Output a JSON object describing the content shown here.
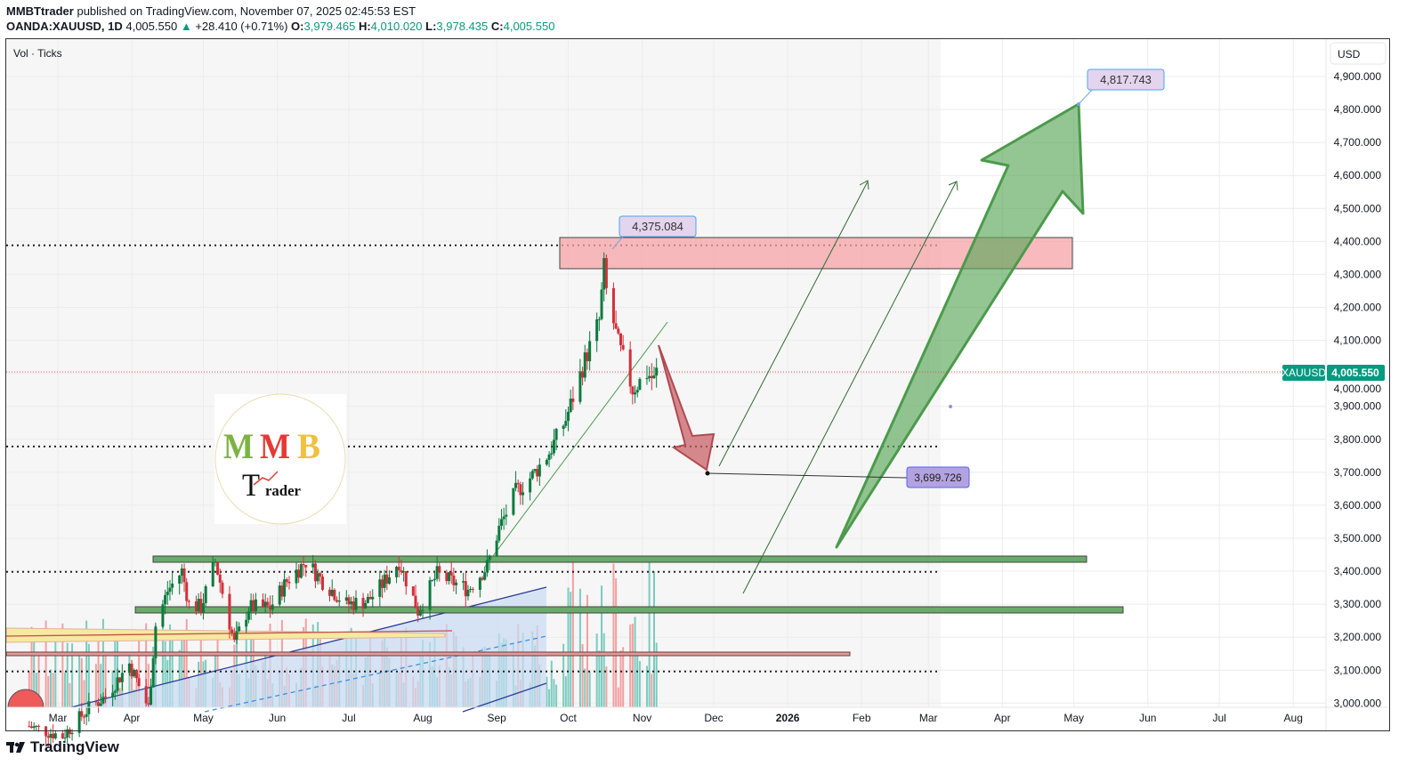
{
  "header": {
    "publisher": "MMBTtrader",
    "published_text": "published on TradingView.com, November 07, 2025 02:45:53 EST",
    "symbol": "OANDA:XAUUSD, 1D",
    "last": "4,005.550",
    "change": "+28.410 (+0.71%)",
    "open_label": "O:",
    "open": "3,979.465",
    "high_label": "H:",
    "high": "4,010.020",
    "low_label": "L:",
    "low": "3,978.435",
    "close_label": "C:",
    "close": "4,005.550",
    "up_color": "#089981"
  },
  "indicator_label": "Vol · Ticks",
  "currency_button": "USD",
  "price_badge": {
    "symbol": "XAUUSD",
    "price": "4,005.550",
    "color": "#089981"
  },
  "logo": {
    "text": "MMB Trader"
  },
  "footer": {
    "brand": "TradingView"
  },
  "chart_data": {
    "type": "candlestick",
    "title": "",
    "y_axis": {
      "min": 3000,
      "max": 4900,
      "ticks": [
        "3,000.000",
        "3,100.000",
        "3,200.000",
        "3,300.000",
        "3,400.000",
        "3,500.000",
        "3,600.000",
        "3,700.000",
        "3,800.000",
        "3,900.000",
        "4,000.000",
        "4,100.000",
        "4,200.000",
        "4,300.000",
        "4,400.000",
        "4,500.000",
        "4,600.000",
        "4,700.000",
        "4,800.000",
        "4,900.000"
      ],
      "position": "right"
    },
    "x_axis": {
      "ticks": [
        {
          "label": "Mar",
          "date": "2025-03-01"
        },
        {
          "label": "Apr",
          "date": "2025-04-01"
        },
        {
          "label": "May",
          "date": "2025-05-01"
        },
        {
          "label": "Jun",
          "date": "2025-06-01"
        },
        {
          "label": "Jul",
          "date": "2025-07-01"
        },
        {
          "label": "Aug",
          "date": "2025-08-01"
        },
        {
          "label": "Sep",
          "date": "2025-09-01"
        },
        {
          "label": "Oct",
          "date": "2025-10-01"
        },
        {
          "label": "Nov",
          "date": "2025-11-01"
        },
        {
          "label": "Dec",
          "date": "2025-12-01"
        },
        {
          "label": "2026",
          "date": "2026-01-01",
          "bold": true
        },
        {
          "label": "Feb",
          "date": "2026-02-01"
        },
        {
          "label": "Mar",
          "date": "2026-03-01"
        },
        {
          "label": "Apr",
          "date": "2026-04-01"
        },
        {
          "label": "May",
          "date": "2026-05-01"
        },
        {
          "label": "Jun",
          "date": "2026-06-01"
        },
        {
          "label": "Jul",
          "date": "2026-07-01"
        },
        {
          "label": "Aug",
          "date": "2026-08-01"
        }
      ]
    },
    "grid": true,
    "close_path_approx": [
      [
        "2025-02-17",
        2930
      ],
      [
        "2025-03-03",
        2900
      ],
      [
        "2025-03-14",
        2985
      ],
      [
        "2025-03-21",
        3020
      ],
      [
        "2025-03-31",
        3120
      ],
      [
        "2025-04-08",
        2985
      ],
      [
        "2025-04-11",
        3235
      ],
      [
        "2025-04-16",
        3340
      ],
      [
        "2025-04-22",
        3400
      ],
      [
        "2025-04-25",
        3300
      ],
      [
        "2025-04-30",
        3290
      ],
      [
        "2025-05-06",
        3430
      ],
      [
        "2025-05-14",
        3180
      ],
      [
        "2025-05-20",
        3290
      ],
      [
        "2025-05-29",
        3290
      ],
      [
        "2025-06-05",
        3370
      ],
      [
        "2025-06-13",
        3430
      ],
      [
        "2025-06-20",
        3370
      ],
      [
        "2025-06-30",
        3300
      ],
      [
        "2025-07-09",
        3310
      ],
      [
        "2025-07-14",
        3350
      ],
      [
        "2025-07-22",
        3430
      ],
      [
        "2025-07-30",
        3280
      ],
      [
        "2025-08-07",
        3390
      ],
      [
        "2025-08-20",
        3345
      ],
      [
        "2025-08-28",
        3415
      ],
      [
        "2025-09-02",
        3530
      ],
      [
        "2025-09-09",
        3640
      ],
      [
        "2025-09-16",
        3690
      ],
      [
        "2025-09-23",
        3760
      ],
      [
        "2025-09-30",
        3860
      ],
      [
        "2025-10-08",
        4040
      ],
      [
        "2025-10-14",
        4160
      ],
      [
        "2025-10-16",
        4320
      ],
      [
        "2025-10-17",
        4250
      ],
      [
        "2025-10-21",
        4120
      ],
      [
        "2025-10-22",
        4090
      ],
      [
        "2025-10-28",
        3950
      ],
      [
        "2025-11-03",
        4000
      ],
      [
        "2025-11-06",
        3980
      ],
      [
        "2025-11-07",
        4005.55
      ]
    ],
    "last_price": 4005.55,
    "annotations": {
      "price_labels": [
        {
          "text": "4,375.084",
          "date": "2025-10-18",
          "price": 4375.084
        },
        {
          "text": "4,817.743",
          "date": "2026-05-01",
          "price": 4817.743
        },
        {
          "text": "3,699.726",
          "date": "2025-11-28",
          "price": 3699.726
        }
      ],
      "resistance_zone": {
        "from": "2025-10-01",
        "to": "2026-05-01",
        "low": 4318,
        "high": 4413,
        "color": "#f7a8ab"
      },
      "support_zones": [
        {
          "from": "2025-04-10",
          "to": "2026-05-05",
          "low": 3427,
          "high": 3447,
          "color": "#6aaa6a"
        },
        {
          "from": "2025-04-03",
          "to": "2026-05-20",
          "low": 3273,
          "high": 3292,
          "color": "#6aaa6a"
        }
      ],
      "dotted_levels": [
        4388,
        3778,
        3398,
        3096
      ],
      "red_level": 3155,
      "down_arrow": {
        "from": [
          "2025-11-06",
          4095
        ],
        "to": [
          "2025-11-28",
          3699.726
        ],
        "color": "#c85a5f"
      },
      "big_up_arrow": {
        "from": [
          "2026-03-05",
          3480
        ],
        "to": [
          "2026-05-01",
          4817.743
        ],
        "color": "#5aa85a"
      },
      "thin_up_arrows": [
        {
          "from": [
            "2025-12-03",
            3725
          ],
          "to": [
            "2026-01-04",
            4598
          ]
        },
        {
          "from": [
            "2025-12-13",
            3345
          ],
          "to": [
            "2026-02-08",
            4598
          ]
        }
      ]
    }
  }
}
